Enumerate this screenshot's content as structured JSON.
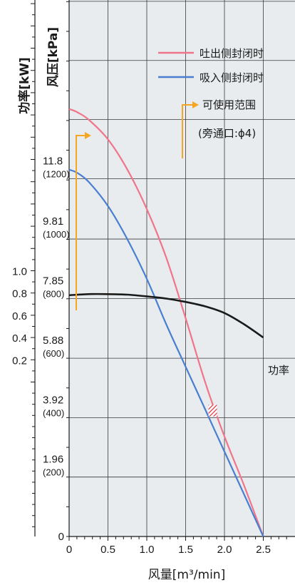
{
  "chart_data": {
    "type": "line",
    "ylabel_pressure": "风压[kPa]",
    "ylabel_power": "功率[kW]",
    "xlabel": "风量[m³/min]",
    "xlim": [
      0,
      2.8
    ],
    "x_ticks": [
      "0",
      "0.5",
      "1.0",
      "1.5",
      "2.0",
      "2.5"
    ],
    "pressure_ticks": [
      {
        "value": 0,
        "label": "0",
        "sub": ""
      },
      {
        "value": 1.96,
        "label": "1.96",
        "sub": "(200)"
      },
      {
        "value": 3.92,
        "label": "3.92",
        "sub": "(400)"
      },
      {
        "value": 5.88,
        "label": "5.88",
        "sub": "(600)"
      },
      {
        "value": 7.85,
        "label": "7.85",
        "sub": "(800)"
      },
      {
        "value": 9.81,
        "label": "9.81",
        "sub": "(1000)"
      },
      {
        "value": 11.8,
        "label": "11.8",
        "sub": "(1200)"
      }
    ],
    "power_ticks": [
      "1.0",
      "0.8",
      "0.6",
      "0.4",
      "0.2"
    ],
    "power_tick_values": [
      1.0,
      0.8,
      0.6,
      0.4,
      0.2
    ],
    "series": [
      {
        "name": "吐出侧封闭时",
        "axis": "pressure",
        "color": "#f0758a",
        "x": [
          0,
          0.1,
          0.25,
          0.5,
          0.75,
          1.0,
          1.25,
          1.5,
          1.75,
          2.0,
          2.25,
          2.5
        ],
        "y": [
          14.1,
          14.0,
          13.75,
          13.1,
          12.1,
          10.8,
          9.2,
          7.2,
          5.1,
          3.3,
          1.7,
          0
        ]
      },
      {
        "name": "吸入侧封闭时",
        "axis": "pressure",
        "color": "#4a7fd0",
        "x": [
          0,
          0.1,
          0.25,
          0.5,
          0.75,
          1.0,
          1.25,
          1.5,
          1.75,
          2.0,
          2.25,
          2.5
        ],
        "y": [
          12.1,
          12.0,
          11.7,
          10.9,
          9.8,
          8.5,
          7.0,
          5.6,
          4.2,
          2.8,
          1.4,
          0
        ]
      },
      {
        "name": "功率",
        "axis": "power",
        "color": "#1a1a1a",
        "x": [
          0,
          0.25,
          0.5,
          0.75,
          1.0,
          1.25,
          1.5,
          1.75,
          2.0,
          2.25,
          2.5
        ],
        "y": [
          0.78,
          0.79,
          0.79,
          0.785,
          0.77,
          0.75,
          0.72,
          0.68,
          0.62,
          0.52,
          0.4
        ]
      }
    ],
    "range_legend": [
      "可使用范围",
      "(旁通口:ϕ4)"
    ],
    "range_color": "#f5a623",
    "hatch_color": "#e0303a",
    "hatch_point": {
      "x": 1.85,
      "y": 4.15
    },
    "grid": true,
    "legend_position": "top-right"
  }
}
